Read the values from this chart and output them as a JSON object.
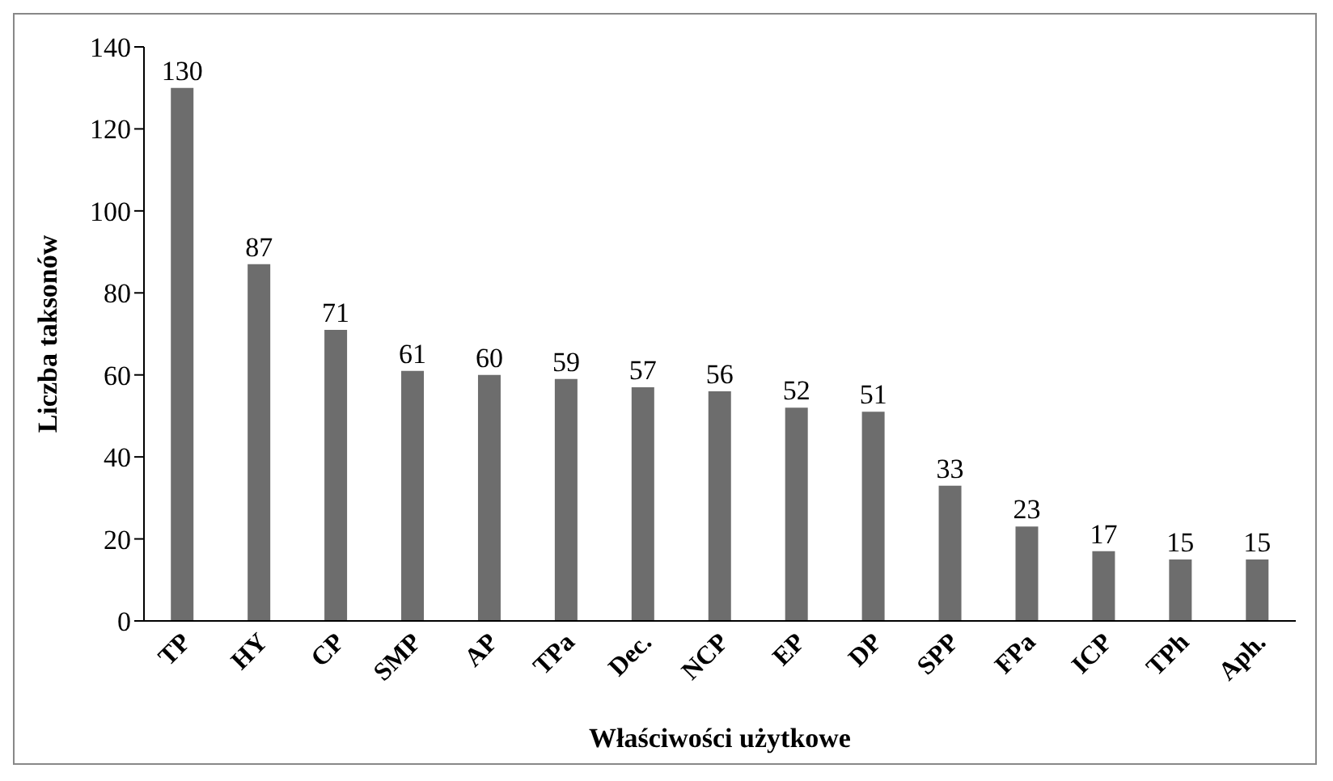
{
  "chart_data": {
    "type": "bar",
    "xlabel": "Właściwości użytkowe",
    "ylabel": "Liczba taksonów",
    "categories": [
      "TP",
      "HY",
      "CP",
      "SMP",
      "AP",
      "TPa",
      "Dec.",
      "NCP",
      "EP",
      "DP",
      "SPP",
      "FPa",
      "ICP",
      "TPh",
      "Aph."
    ],
    "values": [
      130,
      87,
      71,
      61,
      60,
      59,
      57,
      56,
      52,
      51,
      33,
      23,
      17,
      15,
      15
    ],
    "color": "#6d6d6d",
    "ylim": [
      0,
      140
    ],
    "yticks": [
      0,
      20,
      40,
      60,
      80,
      100,
      120,
      140
    ],
    "grid": false,
    "data_labels": true
  }
}
